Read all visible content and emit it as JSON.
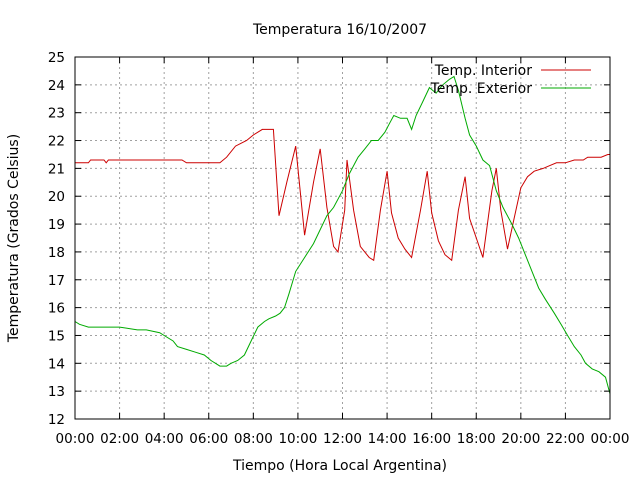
{
  "chart_data": {
    "type": "line",
    "title": "Temperatura 16/10/2007",
    "xlabel": "Tiempo (Hora Local Argentina)",
    "ylabel": "Temperatura (Grados Celsius)",
    "xlim": [
      0,
      24
    ],
    "ylim": [
      12,
      25
    ],
    "x_tick_values": [
      0,
      2,
      4,
      6,
      8,
      10,
      12,
      14,
      16,
      18,
      20,
      22,
      24
    ],
    "x_tick_labels": [
      "00:00",
      "02:00",
      "04:00",
      "06:00",
      "08:00",
      "10:00",
      "12:00",
      "14:00",
      "16:00",
      "18:00",
      "20:00",
      "22:00",
      "00:00"
    ],
    "y_tick_values": [
      12,
      13,
      14,
      15,
      16,
      17,
      18,
      19,
      20,
      21,
      22,
      23,
      24,
      25
    ],
    "y_tick_labels": [
      "12",
      "13",
      "14",
      "15",
      "16",
      "17",
      "18",
      "19",
      "20",
      "21",
      "22",
      "23",
      "24",
      "25"
    ],
    "grid": true,
    "legend_position": "top-right",
    "series": [
      {
        "name": "Temp. Interior",
        "color": "#cc0000",
        "points": [
          [
            0,
            21.2
          ],
          [
            0.6,
            21.2
          ],
          [
            0.7,
            21.3
          ],
          [
            1.3,
            21.3
          ],
          [
            1.4,
            21.2
          ],
          [
            1.5,
            21.3
          ],
          [
            3.0,
            21.3
          ],
          [
            3.5,
            21.3
          ],
          [
            4.2,
            21.3
          ],
          [
            4.8,
            21.3
          ],
          [
            5.0,
            21.2
          ],
          [
            6.5,
            21.2
          ],
          [
            6.8,
            21.4
          ],
          [
            7.2,
            21.8
          ],
          [
            7.7,
            22.0
          ],
          [
            8.0,
            22.2
          ],
          [
            8.4,
            22.4
          ],
          [
            8.9,
            22.4
          ],
          [
            9.15,
            19.3
          ],
          [
            9.5,
            20.5
          ],
          [
            9.9,
            21.8
          ],
          [
            10.3,
            18.6
          ],
          [
            10.7,
            20.5
          ],
          [
            11.0,
            21.7
          ],
          [
            11.3,
            19.6
          ],
          [
            11.6,
            18.2
          ],
          [
            11.8,
            18.0
          ],
          [
            12.1,
            19.5
          ],
          [
            12.2,
            21.3
          ],
          [
            12.5,
            19.5
          ],
          [
            12.8,
            18.2
          ],
          [
            13.2,
            17.8
          ],
          [
            13.4,
            17.7
          ],
          [
            13.7,
            19.5
          ],
          [
            14.0,
            20.9
          ],
          [
            14.2,
            19.4
          ],
          [
            14.5,
            18.5
          ],
          [
            14.8,
            18.1
          ],
          [
            15.1,
            17.8
          ],
          [
            15.5,
            19.5
          ],
          [
            15.8,
            20.9
          ],
          [
            16.0,
            19.4
          ],
          [
            16.3,
            18.4
          ],
          [
            16.6,
            17.9
          ],
          [
            16.9,
            17.7
          ],
          [
            17.2,
            19.5
          ],
          [
            17.5,
            20.7
          ],
          [
            17.7,
            19.2
          ],
          [
            18.0,
            18.5
          ],
          [
            18.3,
            17.8
          ],
          [
            18.7,
            20.2
          ],
          [
            18.9,
            21.0
          ],
          [
            19.1,
            19.5
          ],
          [
            19.4,
            18.1
          ],
          [
            19.7,
            19.2
          ],
          [
            20.0,
            20.3
          ],
          [
            20.3,
            20.7
          ],
          [
            20.6,
            20.9
          ],
          [
            21.0,
            21.0
          ],
          [
            21.3,
            21.1
          ],
          [
            21.6,
            21.2
          ],
          [
            22.0,
            21.2
          ],
          [
            22.4,
            21.3
          ],
          [
            22.8,
            21.3
          ],
          [
            23.0,
            21.4
          ],
          [
            23.6,
            21.4
          ],
          [
            23.9,
            21.5
          ],
          [
            24.0,
            21.5
          ]
        ]
      },
      {
        "name": "Temp. Exterior",
        "color": "#00aa00",
        "points": [
          [
            0,
            15.5
          ],
          [
            0.2,
            15.4
          ],
          [
            0.6,
            15.3
          ],
          [
            1.2,
            15.3
          ],
          [
            2.0,
            15.3
          ],
          [
            2.8,
            15.2
          ],
          [
            3.2,
            15.2
          ],
          [
            3.8,
            15.1
          ],
          [
            4.0,
            15.0
          ],
          [
            4.4,
            14.8
          ],
          [
            4.6,
            14.6
          ],
          [
            5.0,
            14.5
          ],
          [
            5.4,
            14.4
          ],
          [
            5.8,
            14.3
          ],
          [
            6.1,
            14.1
          ],
          [
            6.5,
            13.9
          ],
          [
            6.8,
            13.9
          ],
          [
            7.0,
            14.0
          ],
          [
            7.3,
            14.1
          ],
          [
            7.6,
            14.3
          ],
          [
            7.9,
            14.8
          ],
          [
            8.2,
            15.3
          ],
          [
            8.5,
            15.5
          ],
          [
            8.7,
            15.6
          ],
          [
            9.0,
            15.7
          ],
          [
            9.2,
            15.8
          ],
          [
            9.4,
            16.0
          ],
          [
            9.6,
            16.5
          ],
          [
            9.9,
            17.3
          ],
          [
            10.3,
            17.8
          ],
          [
            10.7,
            18.3
          ],
          [
            11.0,
            18.8
          ],
          [
            11.3,
            19.3
          ],
          [
            11.6,
            19.6
          ],
          [
            12.0,
            20.2
          ],
          [
            12.3,
            20.8
          ],
          [
            12.7,
            21.4
          ],
          [
            13.0,
            21.7
          ],
          [
            13.3,
            22.0
          ],
          [
            13.6,
            22.0
          ],
          [
            13.9,
            22.3
          ],
          [
            14.1,
            22.6
          ],
          [
            14.3,
            22.9
          ],
          [
            14.6,
            22.8
          ],
          [
            14.9,
            22.8
          ],
          [
            15.1,
            22.4
          ],
          [
            15.3,
            22.9
          ],
          [
            15.6,
            23.4
          ],
          [
            15.9,
            23.9
          ],
          [
            16.2,
            23.7
          ],
          [
            16.5,
            24.0
          ],
          [
            16.8,
            24.2
          ],
          [
            17.0,
            24.3
          ],
          [
            17.2,
            23.8
          ],
          [
            17.5,
            22.8
          ],
          [
            17.7,
            22.2
          ],
          [
            18.0,
            21.8
          ],
          [
            18.3,
            21.3
          ],
          [
            18.6,
            21.1
          ],
          [
            18.9,
            20.2
          ],
          [
            19.2,
            19.6
          ],
          [
            19.6,
            19.0
          ],
          [
            19.9,
            18.5
          ],
          [
            20.2,
            17.9
          ],
          [
            20.5,
            17.3
          ],
          [
            20.8,
            16.7
          ],
          [
            21.1,
            16.3
          ],
          [
            21.5,
            15.8
          ],
          [
            21.8,
            15.4
          ],
          [
            22.1,
            15.0
          ],
          [
            22.4,
            14.6
          ],
          [
            22.7,
            14.3
          ],
          [
            22.9,
            14.0
          ],
          [
            23.2,
            13.8
          ],
          [
            23.5,
            13.7
          ],
          [
            23.8,
            13.5
          ],
          [
            24.0,
            12.9
          ]
        ]
      }
    ]
  }
}
